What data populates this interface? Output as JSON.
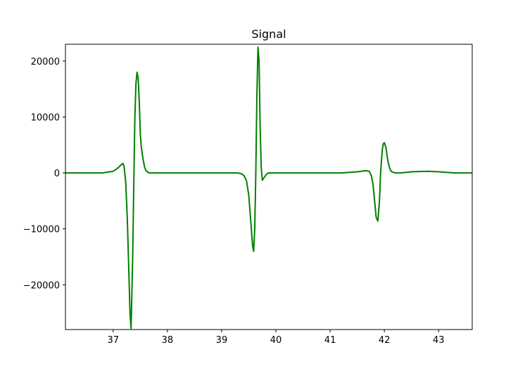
{
  "chart_data": {
    "type": "line",
    "title": "Signal",
    "xlabel": "",
    "ylabel": "",
    "xlim": [
      36.12,
      43.62
    ],
    "ylim": [
      -28000,
      23000
    ],
    "x_ticks": [
      37,
      38,
      39,
      40,
      41,
      42,
      43
    ],
    "y_ticks": [
      -20000,
      -10000,
      0,
      10000,
      20000
    ],
    "x_tick_labels": [
      "37",
      "38",
      "39",
      "40",
      "41",
      "42",
      "43"
    ],
    "y_tick_labels": [
      "−20000",
      "−10000",
      "0",
      "10000",
      "20000"
    ],
    "grid": false,
    "series": [
      {
        "color": "#008000",
        "x": [
          36.12,
          36.5,
          36.8,
          37.0,
          37.05,
          37.1,
          37.15,
          37.18,
          37.2,
          37.23,
          37.26,
          37.29,
          37.31,
          37.33,
          37.36,
          37.38,
          37.4,
          37.42,
          37.44,
          37.46,
          37.48,
          37.5,
          37.52,
          37.55,
          37.58,
          37.6,
          37.63,
          37.66,
          37.7,
          37.75,
          37.85,
          38.0,
          38.5,
          39.0,
          39.3,
          39.38,
          39.42,
          39.46,
          39.5,
          39.54,
          39.57,
          39.59,
          39.61,
          39.63,
          39.65,
          39.67,
          39.69,
          39.71,
          39.73,
          39.75,
          39.78,
          39.82,
          39.86,
          39.92,
          40.0,
          40.3,
          40.8,
          41.2,
          41.5,
          41.65,
          41.72,
          41.76,
          41.79,
          41.82,
          41.85,
          41.88,
          41.91,
          41.93,
          41.96,
          41.98,
          42.0,
          42.03,
          42.05,
          42.08,
          42.11,
          42.14,
          42.2,
          42.3,
          42.5,
          42.8,
          43.0,
          43.3,
          43.62
        ],
        "y": [
          0,
          0,
          0,
          300,
          600,
          1000,
          1500,
          1700,
          1200,
          -1500,
          -8000,
          -18000,
          -25000,
          -27800,
          -15000,
          -2000,
          10000,
          16000,
          18000,
          17000,
          13000,
          7000,
          4500,
          2500,
          1000,
          500,
          200,
          0,
          0,
          0,
          0,
          0,
          0,
          0,
          0,
          -200,
          -600,
          -1500,
          -4000,
          -9000,
          -13000,
          -14000,
          -10000,
          0,
          14000,
          22500,
          20000,
          8000,
          1000,
          -1300,
          -900,
          -300,
          0,
          0,
          0,
          0,
          0,
          0,
          200,
          400,
          300,
          -500,
          -2000,
          -5000,
          -8000,
          -8600,
          -5000,
          0,
          4000,
          5200,
          5400,
          4500,
          3000,
          1500,
          500,
          200,
          0,
          0,
          200,
          300,
          200,
          0,
          0
        ]
      }
    ]
  }
}
